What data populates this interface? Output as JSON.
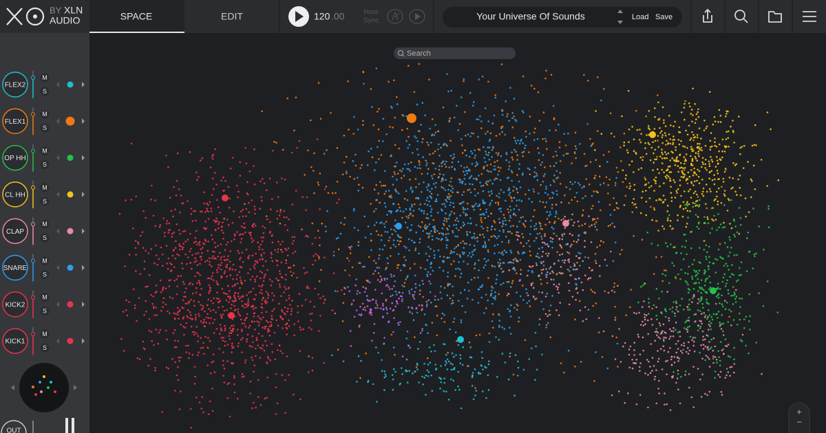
{
  "brand": {
    "by": "BY",
    "name": "XLN",
    "sub": "AUDIO"
  },
  "tabs": [
    "SPACE",
    "EDIT"
  ],
  "transport": {
    "tempo": "120",
    "tempo_fraction": ".00",
    "host": "Host",
    "sync": "Sync"
  },
  "preset": {
    "name": "Your Universe Of Sounds",
    "load": "Load",
    "save": "Save"
  },
  "search": {
    "placeholder": "Search"
  },
  "tracks": [
    {
      "name": "FLEX2",
      "mute": "M",
      "solo": "S",
      "color": "#1ebfd0"
    },
    {
      "name": "FLEX1",
      "mute": "M",
      "solo": "S",
      "color": "#f07a10"
    },
    {
      "name": "OP HH",
      "mute": "M",
      "solo": "S",
      "color": "#22c24a"
    },
    {
      "name": "CL HH",
      "mute": "M",
      "solo": "S",
      "color": "#f5c21a"
    },
    {
      "name": "CLAP",
      "mute": "M",
      "solo": "S",
      "color": "#e88aa8"
    },
    {
      "name": "SNARE",
      "mute": "M",
      "solo": "S",
      "color": "#2a9ff0"
    },
    {
      "name": "KICK2",
      "mute": "M",
      "solo": "S",
      "color": "#e8344a"
    },
    {
      "name": "KICK1",
      "mute": "M",
      "solo": "S",
      "color": "#e8344a"
    }
  ],
  "output": {
    "label": "OUT"
  },
  "zoom": {
    "in": "+",
    "out": "−"
  }
}
